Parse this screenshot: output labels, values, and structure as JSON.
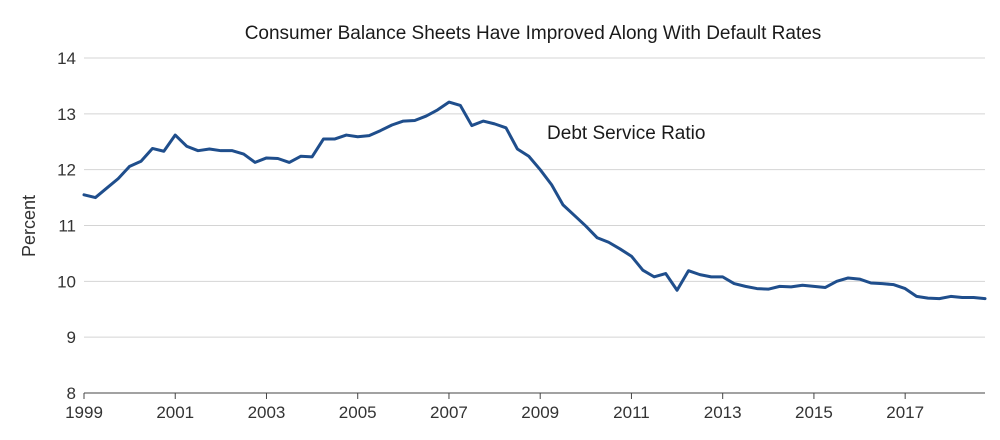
{
  "chart_data": {
    "type": "line",
    "title": "Consumer Balance Sheets Have Improved Along With Default Rates",
    "ylabel": "Percent",
    "xlabel": "",
    "ylim": [
      8,
      14
    ],
    "yticks": [
      8,
      9,
      10,
      11,
      12,
      13,
      14
    ],
    "xlim": [
      1999,
      2018.75
    ],
    "xticks": [
      "1999",
      "2001",
      "2003",
      "2005",
      "2007",
      "2009",
      "2011",
      "2013",
      "2015",
      "2017"
    ],
    "grid": true,
    "series": [
      {
        "name": "Debt Service Ratio",
        "color": "#1f4e8c",
        "x": [
          1999.0,
          1999.25,
          1999.5,
          1999.75,
          2000.0,
          2000.25,
          2000.5,
          2000.75,
          2001.0,
          2001.25,
          2001.5,
          2001.75,
          2002.0,
          2002.25,
          2002.5,
          2002.75,
          2003.0,
          2003.25,
          2003.5,
          2003.75,
          2004.0,
          2004.25,
          2004.5,
          2004.75,
          2005.0,
          2005.25,
          2005.5,
          2005.75,
          2006.0,
          2006.25,
          2006.5,
          2006.75,
          2007.0,
          2007.25,
          2007.5,
          2007.75,
          2008.0,
          2008.25,
          2008.5,
          2008.75,
          2009.0,
          2009.25,
          2009.5,
          2009.75,
          2010.0,
          2010.25,
          2010.5,
          2010.75,
          2011.0,
          2011.25,
          2011.5,
          2011.75,
          2012.0,
          2012.25,
          2012.5,
          2012.75,
          2013.0,
          2013.25,
          2013.5,
          2013.75,
          2014.0,
          2014.25,
          2014.5,
          2014.75,
          2015.0,
          2015.25,
          2015.5,
          2015.75,
          2016.0,
          2016.25,
          2016.5,
          2016.75,
          2017.0,
          2017.25,
          2017.5,
          2017.75,
          2018.0,
          2018.25,
          2018.5,
          2018.75
        ],
        "values": [
          11.55,
          11.5,
          11.67,
          11.84,
          12.06,
          12.15,
          12.38,
          12.33,
          12.62,
          12.42,
          12.34,
          12.37,
          12.34,
          12.34,
          12.28,
          12.13,
          12.21,
          12.2,
          12.13,
          12.24,
          12.23,
          12.55,
          12.55,
          12.62,
          12.59,
          12.61,
          12.7,
          12.8,
          12.87,
          12.88,
          12.96,
          13.07,
          13.21,
          13.15,
          12.79,
          12.87,
          12.82,
          12.75,
          12.37,
          12.24,
          12.0,
          11.73,
          11.37,
          11.18,
          10.99,
          10.78,
          10.7,
          10.58,
          10.45,
          10.2,
          10.08,
          10.14,
          9.84,
          10.19,
          10.12,
          10.08,
          10.08,
          9.96,
          9.91,
          9.87,
          9.86,
          9.91,
          9.9,
          9.93,
          9.91,
          9.89,
          10.0,
          10.06,
          10.04,
          9.97,
          9.96,
          9.94,
          9.87,
          9.73,
          9.7,
          9.69,
          9.73,
          9.71,
          9.71,
          9.69
        ]
      }
    ],
    "annotations": [
      {
        "text": "Debt Service Ratio",
        "x": 2009.15,
        "y": 12.55
      }
    ]
  }
}
